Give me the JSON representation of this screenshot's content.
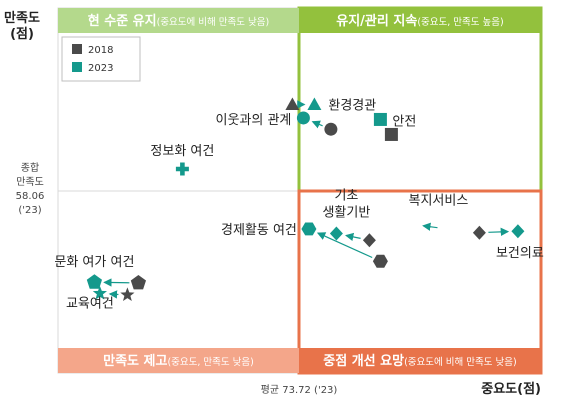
{
  "chart_data": {
    "type": "scatter",
    "x_axis_label": "중요도(점)",
    "y_axis_label_line1": "만족도",
    "y_axis_label_line2": "(점)",
    "x_mean_label": "평균 73.72 ('23)",
    "y_mean_label": [
      "종합",
      "만족도",
      "58.06",
      "('23)"
    ],
    "quadrants": {
      "top_left": {
        "bold": "현 수준 유지",
        "note": "(중요도에 비해 만족도 낮음)",
        "color": "#b4d98c"
      },
      "top_right": {
        "bold": "유지/관리 지속",
        "note": "(중요도, 만족도 높음)",
        "color": "#93c13d"
      },
      "bottom_left": {
        "bold": "만족도 제고",
        "note": "(중요도, 만족도 낮음)",
        "color": "#f4a68a"
      },
      "bottom_right": {
        "bold": "중점 개선 요망",
        "note": "(중요도에 비해 만족도 낮음)",
        "color": "#e8734a"
      }
    },
    "legend": [
      {
        "name": "2018",
        "color": "#4a4a4a"
      },
      {
        "name": "2023",
        "color": "#14998c"
      }
    ],
    "series": [
      {
        "name": "2018",
        "color": "#4a4a4a"
      },
      {
        "name": "2023",
        "color": "#14998c"
      }
    ],
    "items": [
      {
        "label": "환경경관",
        "shape": "triangle",
        "p2018": [
          73.6,
          69.6
        ],
        "p2023": [
          74.0,
          69.6
        ]
      },
      {
        "label": "이웃과의 관계",
        "shape": "circle",
        "p2018": [
          74.3,
          66.3
        ],
        "p2023": [
          73.8,
          67.8
        ]
      },
      {
        "label": "안전",
        "shape": "square",
        "p2018": [
          75.4,
          65.6
        ],
        "p2023": [
          75.2,
          67.6
        ]
      },
      {
        "label": "정보화 여건",
        "shape": "plus",
        "p2023": [
          71.6,
          61.0
        ]
      },
      {
        "label": "경제활동 여건",
        "shape": "hexagon",
        "p2018": [
          75.2,
          48.7
        ],
        "p2023": [
          73.9,
          53.0
        ]
      },
      {
        "label": "기초 생활기반",
        "shape": "diamond",
        "p2018": [
          75.0,
          51.5
        ],
        "p2023": [
          74.4,
          52.4
        ]
      },
      {
        "label": "복지서비스",
        "shape": "moon",
        "p2018": [
          76.4,
          53.0
        ],
        "p2023": [
          75.8,
          53.6
        ]
      },
      {
        "label": "보건의료",
        "shape": "diamond",
        "p2018": [
          77.0,
          52.5
        ],
        "p2023": [
          77.7,
          52.7
        ]
      },
      {
        "label": "문화 여가 여건",
        "shape": "pentagon",
        "p2018": [
          70.8,
          45.8
        ],
        "p2023": [
          70.0,
          45.9
        ]
      },
      {
        "label": "교육여건",
        "shape": "star",
        "p2018": [
          70.6,
          44.2
        ],
        "p2023": [
          70.1,
          44.4
        ]
      }
    ],
    "x_mean": 73.72,
    "y_mean": 58.06
  }
}
